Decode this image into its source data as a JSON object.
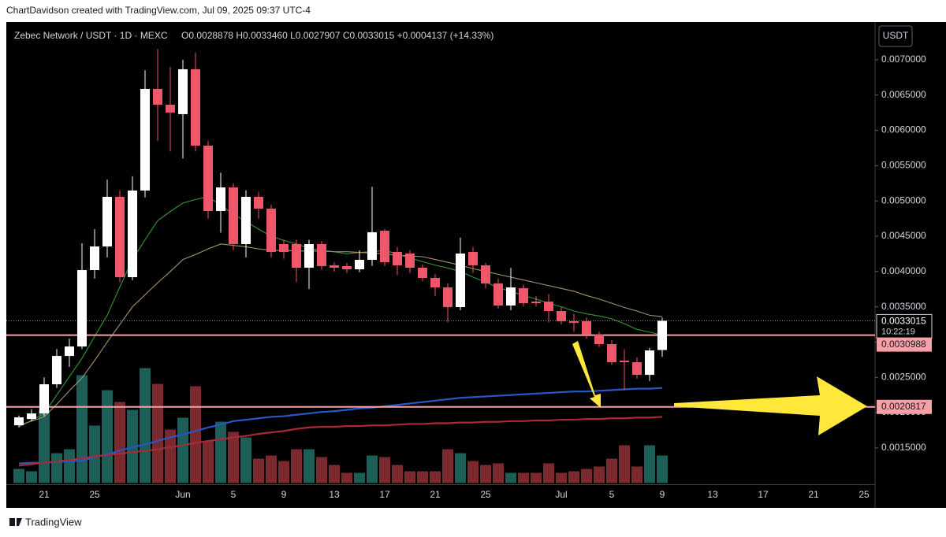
{
  "chart_data": {
    "type": "candlestick",
    "header": "ChartDavidson created with TradingView.com, Jul 09, 2025 09:37 UTC-4",
    "symbol": "Zebec Network / USDT · 1D · MEXC",
    "legend_ohlc": "O0.0028878  H0.0033460  L0.0027907  C0.0033015  +0.0004137 (+14.33%)",
    "currency": "USDT",
    "brand": "TradingView",
    "categories": [
      null,
      null,
      "21",
      null,
      null,
      null,
      "25",
      null,
      null,
      null,
      null,
      null,
      null,
      "Jun",
      null,
      null,
      null,
      "5",
      null,
      null,
      null,
      "9",
      null,
      null,
      null,
      "13",
      null,
      null,
      null,
      "17",
      null,
      null,
      null,
      "21",
      null,
      null,
      null,
      "25",
      null,
      null,
      null,
      null,
      null,
      "Jul",
      null,
      null,
      null,
      "5",
      null,
      null,
      null,
      "9",
      null,
      null,
      null,
      "13",
      null,
      null,
      null,
      "17",
      null,
      null,
      null,
      "21",
      null,
      null,
      null,
      "25"
    ],
    "open": [
      0.0018214,
      0.00191,
      0.0019888,
      0.0024018,
      0.0028036,
      0.0029375,
      0.0040201,
      0.0043549,
      0.005058,
      0.0039196,
      0.0051473,
      0.0065871,
      0.0063638,
      0.0062299,
      0.0068661,
      0.0057835,
      0.0048571,
      0.005192,
      0.0043884,
      0.005058,
      0.0048906,
      0.0043884,
      0.0043884,
      0.0040536,
      0.0043884,
      0.0040871,
      0.0040759,
      0.0040313,
      0.0041652,
      0.0045781,
      0.0042768,
      0.0042545,
      0.0040536,
      0.0039085,
      0.0037746,
      0.0034955,
      0.0042768,
      0.0040871,
      0.0038304,
      0.0035179,
      0.0037634,
      0.0035737,
      0.0035737,
      0.0034397,
      0.0032946,
      0.0032946,
      0.0031049,
      0.002971,
      0.0027366,
      0.0027143,
      0.0025357,
      0.0028878,
      null,
      null,
      null,
      null,
      null,
      null,
      null,
      null,
      null,
      null,
      null,
      null,
      null,
      null,
      null,
      null
    ],
    "high": [
      0.00196,
      0.00205,
      0.0025,
      0.0029,
      0.00305,
      0.0044,
      0.0046,
      0.0053,
      0.00515,
      0.00535,
      0.00685,
      0.00715,
      0.0069,
      0.007,
      0.0071,
      0.00585,
      0.0054,
      0.00525,
      0.00515,
      0.00513,
      0.00495,
      0.00445,
      0.00445,
      0.00445,
      0.00443,
      0.00413,
      0.00412,
      0.0043,
      0.0052,
      0.0046,
      0.00435,
      0.0043,
      0.0041,
      0.00396,
      0.00383,
      0.00448,
      0.00435,
      0.00412,
      0.0039,
      0.00405,
      0.00382,
      0.00365,
      0.00368,
      0.0035,
      0.0034,
      0.00335,
      0.00315,
      0.00303,
      0.0029,
      0.00278,
      0.00292,
      0.003346,
      null,
      null,
      null,
      null,
      null,
      null,
      null,
      null,
      null,
      null,
      null,
      null,
      null,
      null,
      null,
      null
    ],
    "low": [
      0.00179,
      0.00188,
      0.00195,
      0.00235,
      0.00265,
      0.0029,
      0.0039,
      0.0042,
      0.00385,
      0.00388,
      0.00505,
      0.00585,
      0.0057,
      0.0056,
      0.0057,
      0.00475,
      0.00455,
      0.0043,
      0.0042,
      0.00475,
      0.0042,
      0.00418,
      0.00385,
      0.00375,
      0.00402,
      0.004,
      0.00398,
      0.00399,
      0.00408,
      0.00408,
      0.00395,
      0.00398,
      0.00386,
      0.00365,
      0.00328,
      0.00345,
      0.00398,
      0.00376,
      0.00348,
      0.00345,
      0.0035,
      0.0035,
      0.00328,
      0.00325,
      0.00315,
      0.00305,
      0.00293,
      0.00268,
      0.00232,
      0.00248,
      0.00245,
      0.0027907,
      null,
      null,
      null,
      null,
      null,
      null,
      null,
      null,
      null,
      null,
      null,
      null,
      null,
      null,
      null,
      null
    ],
    "close": [
      0.001933,
      0.0019888,
      0.0024018,
      0.0028036,
      0.0029375,
      0.0040201,
      0.0043549,
      0.005058,
      0.0039196,
      0.0051473,
      0.0065871,
      0.0063638,
      0.0062522,
      0.0068661,
      0.0057835,
      0.0048571,
      0.005192,
      0.0043884,
      0.005058,
      0.0048906,
      0.0042768,
      0.0042768,
      0.0040536,
      0.0043884,
      0.0040759,
      0.0040536,
      0.0040313,
      0.0041652,
      0.0045558,
      0.0041317,
      0.0040871,
      0.0040536,
      0.0039085,
      0.0037746,
      0.0034955,
      0.0042545,
      0.0040871,
      0.0038304,
      0.0035179,
      0.0037746,
      0.0035513,
      0.0035513,
      0.0034397,
      0.0032946,
      0.0032723,
      0.0031049,
      0.002971,
      0.0027143,
      0.0027143,
      0.0025357,
      0.0028817,
      0.0033015,
      null,
      null,
      null,
      null,
      null,
      null,
      null,
      null,
      null,
      null,
      null,
      null,
      null,
      null,
      null,
      null
    ],
    "volume": [
      18,
      15,
      93,
      38,
      43,
      137,
      73,
      118,
      103,
      93,
      146,
      126,
      68,
      83,
      123,
      53,
      78,
      65,
      58,
      31,
      35,
      28,
      43,
      43,
      33,
      23,
      13,
      13,
      35,
      33,
      23,
      15,
      15,
      15,
      43,
      38,
      28,
      23,
      25,
      13,
      13,
      13,
      25,
      13,
      15,
      18,
      21,
      31,
      48,
      21,
      48,
      35,
      null,
      null,
      null,
      null,
      null,
      null,
      null,
      null,
      null,
      null,
      null,
      null,
      null,
      null,
      null,
      null
    ],
    "up_color": "#ffffff",
    "down_color": "#f0566a",
    "volume_up_color": "#1d5e58",
    "volume_down_color": "#7a2a2e",
    "lines": [
      {
        "color": "#2f9a32",
        "values": [
          0.0018,
          0.00189,
          0.00199,
          0.00225,
          0.00251,
          0.00277,
          0.00308,
          0.00338,
          0.00378,
          0.00417,
          0.00445,
          0.00472,
          0.00485,
          0.00497,
          0.00502,
          0.00506,
          0.00494,
          0.00481,
          0.00471,
          0.0046,
          0.0045,
          0.00444,
          0.00439,
          0.00433,
          0.0043,
          0.00428,
          0.00425,
          0.00427,
          0.00428,
          0.0043,
          0.00425,
          0.00419,
          0.00414,
          0.00409,
          0.00405,
          0.004,
          0.00392,
          0.00385,
          0.00377,
          0.00372,
          0.00366,
          0.00361,
          0.00355,
          0.0035,
          0.00344,
          0.0034,
          0.00337,
          0.00333,
          0.00326,
          0.00318,
          0.00314,
          0.0031,
          null,
          null,
          null,
          null,
          null,
          null,
          null,
          null,
          null,
          null,
          null,
          null,
          null,
          null,
          null,
          null
        ]
      },
      {
        "color": "#a8916a",
        "values": [
          0.00182,
          0.00188,
          0.00194,
          0.00212,
          0.00231,
          0.00249,
          0.00274,
          0.003,
          0.00325,
          0.0035,
          0.00367,
          0.00384,
          0.004,
          0.00417,
          0.00424,
          0.00432,
          0.00439,
          0.00437,
          0.00435,
          0.00432,
          0.0043,
          0.0043,
          0.00429,
          0.00429,
          0.00429,
          0.00428,
          0.00428,
          0.00427,
          0.00426,
          0.00425,
          0.00423,
          0.00422,
          0.00421,
          0.00417,
          0.00413,
          0.00409,
          0.00404,
          0.004,
          0.00396,
          0.00392,
          0.00388,
          0.00384,
          0.0038,
          0.00376,
          0.00372,
          0.00366,
          0.00361,
          0.00355,
          0.00349,
          0.00344,
          0.00338,
          0.00336,
          null,
          null,
          null,
          null,
          null,
          null,
          null,
          null,
          null,
          null,
          null,
          null,
          null,
          null,
          null,
          null
        ]
      },
      {
        "color": "#2a56c6",
        "values": [
          0.00128,
          0.00129,
          0.00129,
          0.0013,
          0.00131,
          0.00132,
          0.00137,
          0.00141,
          0.00146,
          0.00151,
          0.00155,
          0.0016,
          0.00165,
          0.00169,
          0.00174,
          0.00179,
          0.00183,
          0.00188,
          0.0019,
          0.00192,
          0.00194,
          0.00195,
          0.00197,
          0.00199,
          0.00201,
          0.00202,
          0.00204,
          0.00206,
          0.00207,
          0.00209,
          0.00211,
          0.00213,
          0.00215,
          0.00217,
          0.00219,
          0.00221,
          0.00222,
          0.00223,
          0.00224,
          0.00225,
          0.00226,
          0.00227,
          0.00228,
          0.00229,
          0.0023,
          0.0023,
          0.00231,
          0.00232,
          0.00233,
          0.00234,
          0.00234,
          0.00235,
          null,
          null,
          null,
          null,
          null,
          null,
          null,
          null,
          null,
          null,
          null,
          null,
          null,
          null,
          null,
          null
        ]
      },
      {
        "color": "#a82a36",
        "values": [
          0.00125,
          0.00127,
          0.00129,
          0.00131,
          0.00133,
          0.00135,
          0.00138,
          0.0014,
          0.00142,
          0.00144,
          0.00146,
          0.00148,
          0.00151,
          0.00154,
          0.00157,
          0.0016,
          0.00162,
          0.00165,
          0.00167,
          0.0017,
          0.00172,
          0.00174,
          0.00177,
          0.00179,
          0.0018,
          0.0018,
          0.00181,
          0.00181,
          0.00182,
          0.00182,
          0.00183,
          0.00184,
          0.00184,
          0.00185,
          0.00185,
          0.00186,
          0.00186,
          0.00187,
          0.00187,
          0.00188,
          0.00188,
          0.00189,
          0.00189,
          0.0019,
          0.0019,
          0.00191,
          0.00191,
          0.00192,
          0.00192,
          0.00193,
          0.00193,
          0.00194,
          null,
          null,
          null,
          null,
          null,
          null,
          null,
          null,
          null,
          null,
          null,
          null,
          null,
          null,
          null,
          null
        ]
      }
    ],
    "ylim": [
      0.00098,
      0.00749
    ],
    "yticks": [
      {
        "value": 0.0015,
        "label": "0.0015000"
      },
      {
        "value": 0.002,
        "label": "0.0020000"
      },
      {
        "value": 0.0025,
        "label": "0.0025000"
      },
      {
        "value": 0.003,
        "label": "0.0030000"
      },
      {
        "value": 0.0035,
        "label": "0.0035000"
      },
      {
        "value": 0.004,
        "label": "0.0040000"
      },
      {
        "value": 0.0045,
        "label": "0.0045000"
      },
      {
        "value": 0.005,
        "label": "0.0050000"
      },
      {
        "value": 0.0055,
        "label": "0.0055000"
      },
      {
        "value": 0.006,
        "label": "0.0060000"
      },
      {
        "value": 0.0065,
        "label": "0.0065000"
      },
      {
        "value": 0.007,
        "label": "0.0070000"
      }
    ],
    "grid": false,
    "current_price": {
      "value": 0.0033015,
      "label": "0.0033015",
      "countdown": "10:22:19"
    },
    "levels": [
      {
        "value": 0.0030988,
        "label": "0.0030988",
        "color": "#f7a1a6"
      },
      {
        "value": 0.0020817,
        "label": "0.0020817",
        "color": "#f7a1a6"
      }
    ]
  }
}
